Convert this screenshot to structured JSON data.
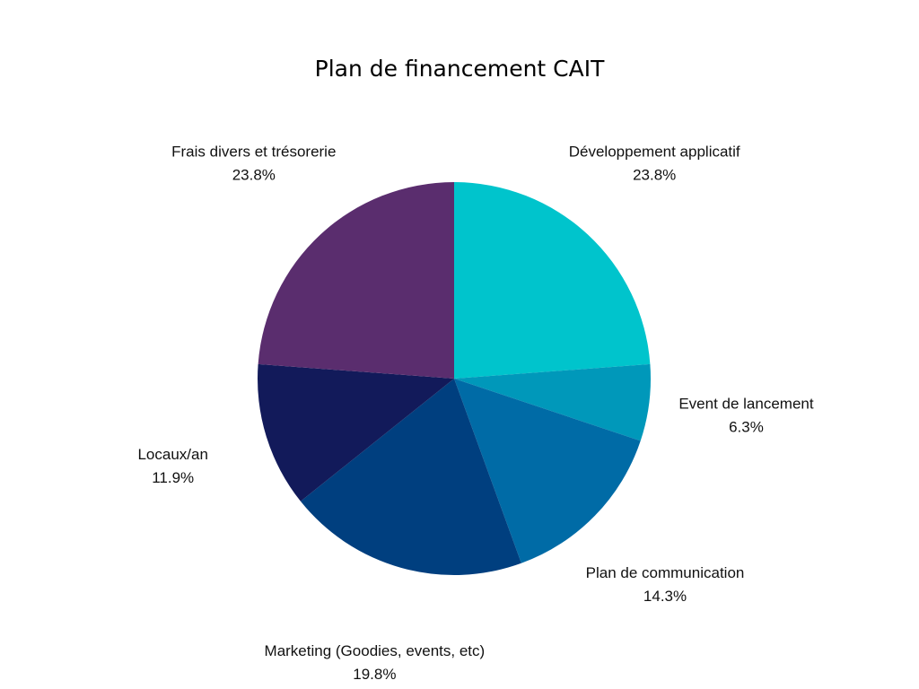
{
  "chart_data": {
    "type": "pie",
    "title": "Plan de financement CAIT",
    "start_angle_deg": 0,
    "direction": "clockwise",
    "slices": [
      {
        "label": "Développement applicatif",
        "value": 23.8,
        "value_label": "23.8%",
        "color": "#00C4CC"
      },
      {
        "label": "Event de lancement",
        "value": 6.3,
        "value_label": "6.3%",
        "color": "#0098BA"
      },
      {
        "label": "Plan de communication",
        "value": 14.3,
        "value_label": "14.3%",
        "color": "#006BA6"
      },
      {
        "label": "Marketing (Goodies, events, etc)",
        "value": 19.8,
        "value_label": "19.8%",
        "color": "#003F7F"
      },
      {
        "label": "Locaux/an",
        "value": 11.9,
        "value_label": "11.9%",
        "color": "#121A5A"
      },
      {
        "label": "Frais divers et trésorerie",
        "value": 23.8,
        "value_label": "23.8%",
        "color": "#5A2D6E"
      }
    ]
  }
}
